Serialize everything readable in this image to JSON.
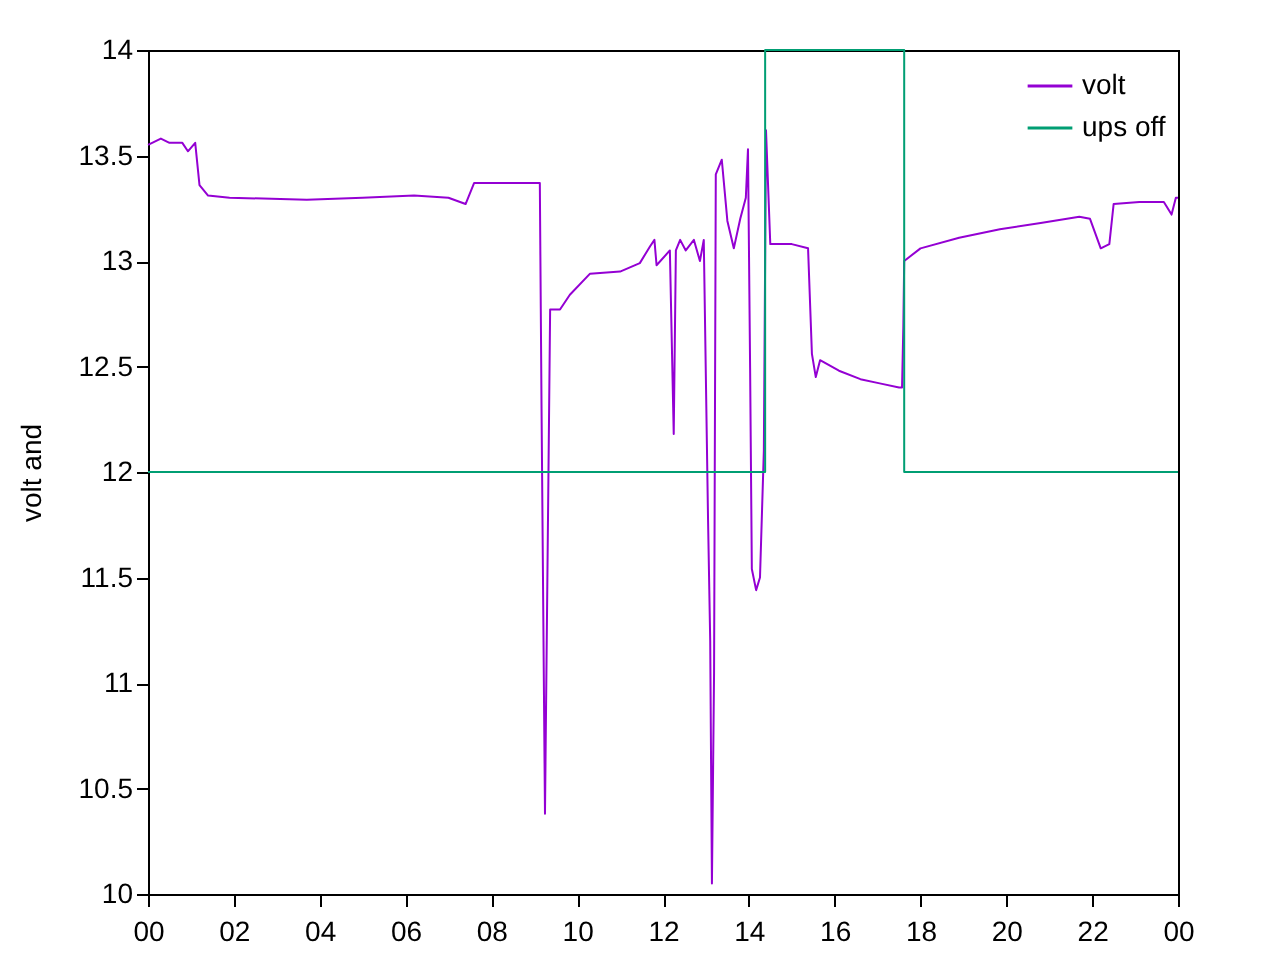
{
  "chart_data": {
    "type": "line",
    "ylabel": "volt and",
    "xlim": [
      0,
      24
    ],
    "ylim": [
      10,
      14
    ],
    "xticks": [
      {
        "value": 0,
        "label": "00"
      },
      {
        "value": 2,
        "label": "02"
      },
      {
        "value": 4,
        "label": "04"
      },
      {
        "value": 6,
        "label": "06"
      },
      {
        "value": 8,
        "label": "08"
      },
      {
        "value": 10,
        "label": "10"
      },
      {
        "value": 12,
        "label": "12"
      },
      {
        "value": 14,
        "label": "14"
      },
      {
        "value": 16,
        "label": "16"
      },
      {
        "value": 18,
        "label": "18"
      },
      {
        "value": 20,
        "label": "20"
      },
      {
        "value": 22,
        "label": "22"
      },
      {
        "value": 24,
        "label": "00"
      }
    ],
    "yticks": [
      10,
      10.5,
      11,
      11.5,
      12,
      12.5,
      13,
      13.5,
      14
    ],
    "grid": false,
    "legend": "top right",
    "marker": "none",
    "line_style": "solid",
    "series": [
      {
        "name": "volt",
        "color": "#9400d3",
        "x": [
          0,
          0.3,
          0.5,
          0.8,
          0.93,
          1.1,
          1.2,
          1.4,
          1.9,
          3.7,
          5,
          6.2,
          7,
          7.4,
          7.6,
          9.13,
          9.17,
          9.25,
          9.37,
          9.6,
          9.83,
          10.3,
          11,
          11.46,
          11.7,
          11.8,
          11.85,
          12.16,
          12.25,
          12.3,
          12.4,
          12.53,
          12.72,
          12.86,
          12.95,
          13.05,
          13.1,
          13.14,
          13.19,
          13.23,
          13.37,
          13.5,
          13.65,
          13.8,
          13.93,
          13.98,
          14.03,
          14.07,
          14.17,
          14.26,
          14.35,
          14.4,
          14.5,
          15.0,
          15.38,
          15.47,
          15.56,
          15.66,
          16.1,
          16.6,
          17.05,
          17.5,
          17.57,
          17.6,
          17.62,
          18,
          18.9,
          19.85,
          20.8,
          21.7,
          21.95,
          22.2,
          22.4,
          22.5,
          23.1,
          23.67,
          23.85,
          23.95,
          24
        ],
        "values": [
          13.55,
          13.58,
          13.56,
          13.56,
          13.52,
          13.56,
          13.36,
          13.31,
          13.3,
          13.29,
          13.3,
          13.31,
          13.3,
          13.27,
          13.37,
          13.37,
          12.3,
          10.38,
          12.77,
          12.77,
          12.84,
          12.94,
          12.95,
          12.99,
          13.07,
          13.1,
          12.98,
          13.05,
          12.18,
          13.05,
          13.1,
          13.05,
          13.1,
          13.0,
          13.1,
          11.77,
          11.2,
          10.05,
          11.05,
          13.41,
          13.48,
          13.19,
          13.06,
          13.2,
          13.3,
          13.53,
          12.49,
          11.54,
          11.44,
          11.5,
          12.1,
          13.62,
          13.08,
          13.08,
          13.06,
          12.56,
          12.45,
          12.53,
          12.48,
          12.44,
          12.42,
          12.4,
          12.4,
          12.69,
          13.0,
          13.06,
          13.11,
          13.15,
          13.18,
          13.21,
          13.2,
          13.06,
          13.08,
          13.27,
          13.28,
          13.28,
          13.22,
          13.3,
          13.3
        ]
      },
      {
        "name": "ups off",
        "color": "#009e73",
        "x": [
          0,
          14.38,
          14.38,
          17.62,
          17.62,
          24
        ],
        "values": [
          12,
          12,
          14,
          14,
          12,
          12
        ]
      }
    ]
  }
}
